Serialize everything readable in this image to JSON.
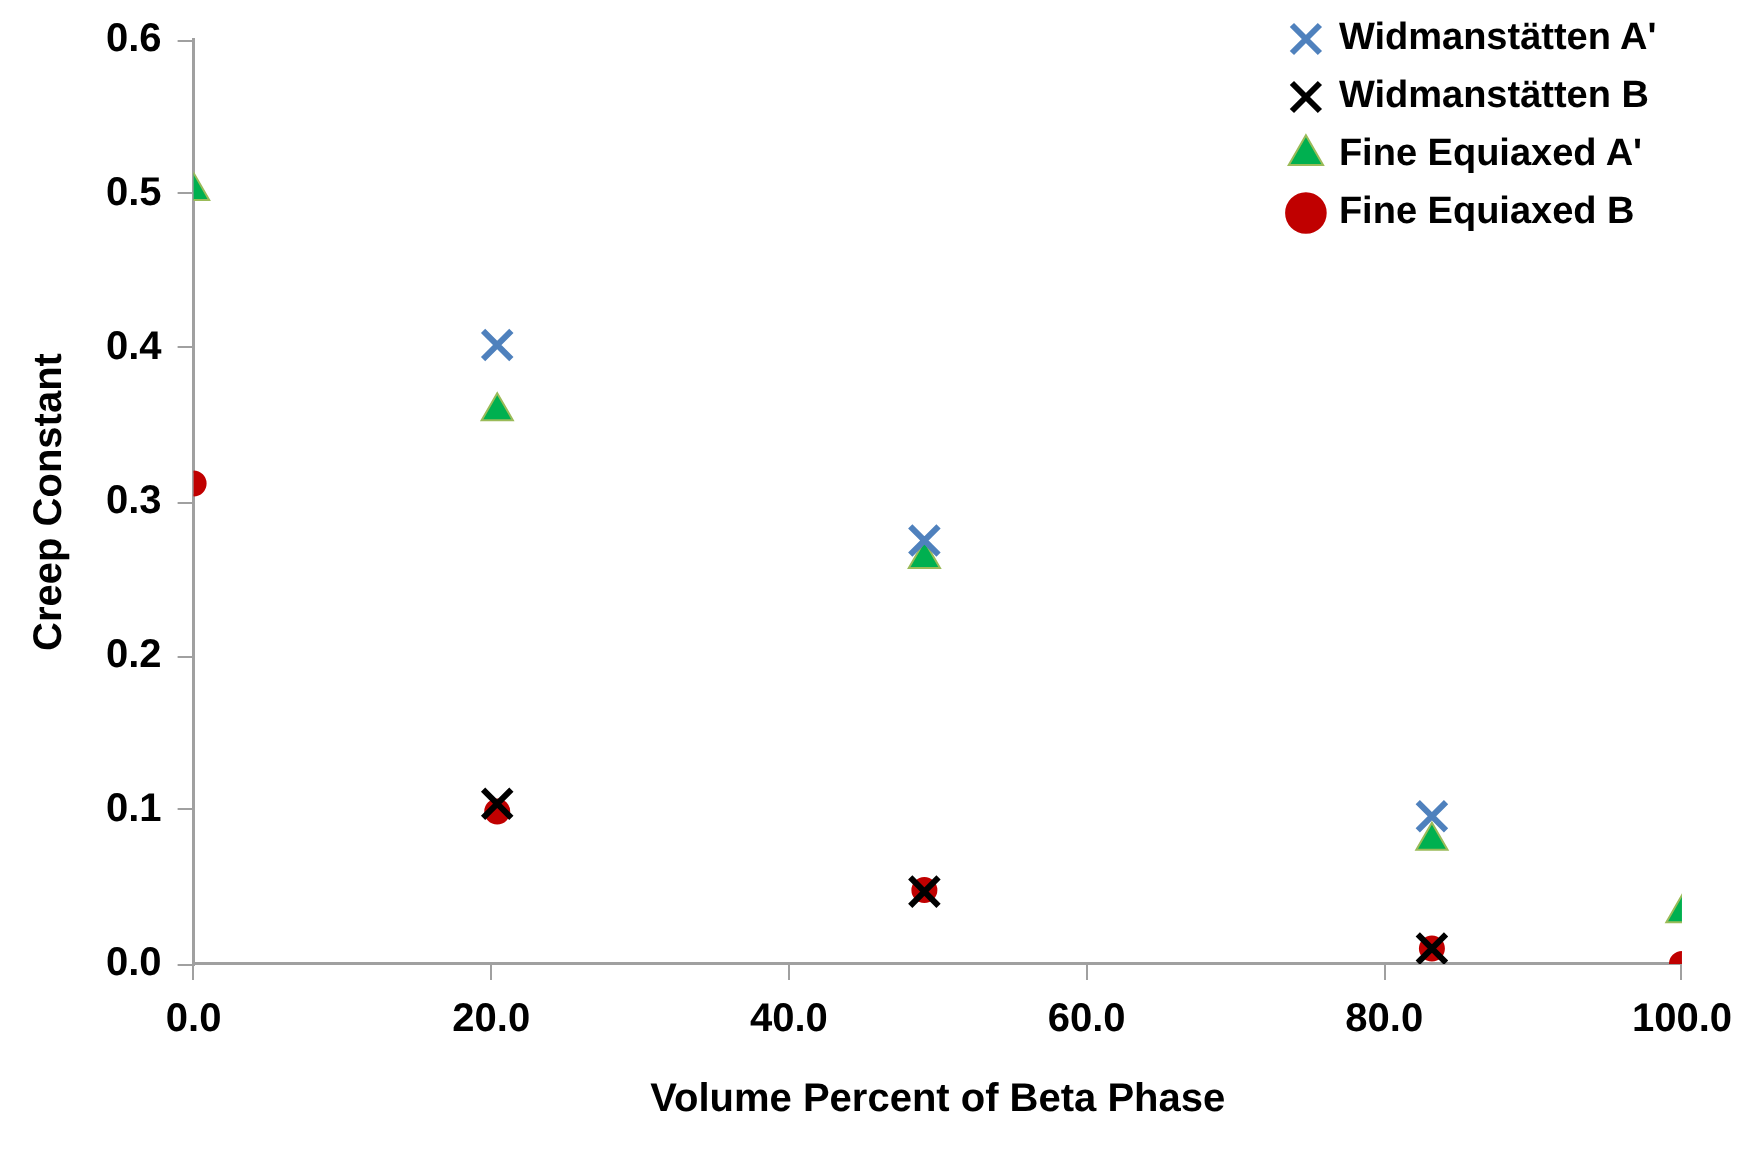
{
  "chart_data": {
    "type": "scatter",
    "xlabel": "Volume Percent of Beta Phase",
    "ylabel": "Creep Constant",
    "xlim": [
      0,
      100
    ],
    "xticks": [
      {
        "value": 0,
        "label": "0.0"
      },
      {
        "value": 20,
        "label": "20.0"
      },
      {
        "value": 40,
        "label": "40.0"
      },
      {
        "value": 60,
        "label": "60.0"
      },
      {
        "value": 80,
        "label": "80.0"
      },
      {
        "value": 100,
        "label": "100.0"
      }
    ],
    "ylim": [
      0,
      0.6
    ],
    "yticks": [
      {
        "value": 0,
        "label": "0.0"
      },
      {
        "value": 0.1,
        "label": "0.1"
      },
      {
        "value": 0.2,
        "label": "0.2"
      },
      {
        "value": 0.3,
        "label": "0.3"
      },
      {
        "value": 0.4,
        "label": "0.4"
      },
      {
        "value": 0.5,
        "label": "0.5"
      },
      {
        "value": 0.6,
        "label": "0.6"
      }
    ],
    "grid": false,
    "legend": "top right",
    "series": [
      {
        "name": "Widmanstätten A'",
        "color": "#4f81bd",
        "marker": "cross",
        "x": [
          20.4,
          49.1,
          83.2
        ],
        "values": [
          0.402,
          0.275,
          0.096
        ]
      },
      {
        "name": "Widmanstätten B",
        "color": "#000000",
        "marker": "cross",
        "x": [
          20.4,
          49.1,
          83.2
        ],
        "values": [
          0.104,
          0.047,
          0.01
        ]
      },
      {
        "name": "Fine Equiaxed A'",
        "color": "#00b050",
        "marker": "triangle",
        "x": [
          0,
          20.4,
          49.1,
          83.2,
          100
        ],
        "values": [
          0.502,
          0.359,
          0.263,
          0.08,
          0.033
        ]
      },
      {
        "name": "Fine Equiaxed B",
        "color": "#c00000",
        "marker": "circle",
        "x": [
          0,
          20.4,
          49.1,
          83.2,
          100
        ],
        "values": [
          0.312,
          0.099,
          0.048,
          0.01,
          0
        ]
      }
    ]
  }
}
